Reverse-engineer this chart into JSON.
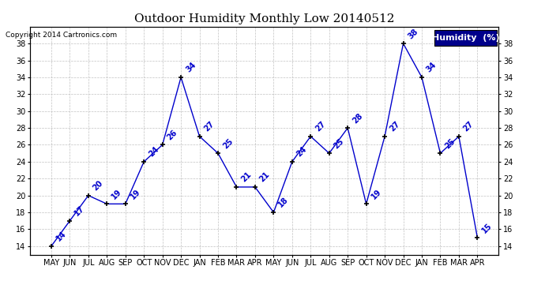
{
  "title": "Outdoor Humidity Monthly Low 20140512",
  "copyright": "Copyright 2014 Cartronics.com",
  "legend_label": "Humidity  (%)",
  "months": [
    "MAY",
    "JUN",
    "JUL",
    "AUG",
    "SEP",
    "OCT",
    "NOV",
    "DEC",
    "JAN",
    "FEB",
    "MAR",
    "APR",
    "MAY",
    "JUN",
    "JUL",
    "AUG",
    "SEP",
    "OCT",
    "NOV",
    "DEC",
    "JAN",
    "FEB",
    "MAR",
    "APR"
  ],
  "values": [
    14,
    17,
    20,
    19,
    19,
    24,
    26,
    34,
    27,
    25,
    21,
    21,
    18,
    24,
    27,
    25,
    28,
    19,
    27,
    38,
    34,
    25,
    27,
    15
  ],
  "ylim": [
    13,
    40
  ],
  "yticks": [
    14,
    16,
    18,
    20,
    22,
    24,
    26,
    28,
    30,
    32,
    34,
    36,
    38
  ],
  "line_color": "#0000cc",
  "marker_color": "#000000",
  "label_color": "#0000cc",
  "bg_color": "#ffffff",
  "grid_color": "#bbbbbb",
  "title_color": "#000000",
  "legend_bg": "#00008b",
  "legend_text": "#ffffff",
  "title_fontsize": 11,
  "tick_fontsize": 7,
  "annot_fontsize": 7
}
